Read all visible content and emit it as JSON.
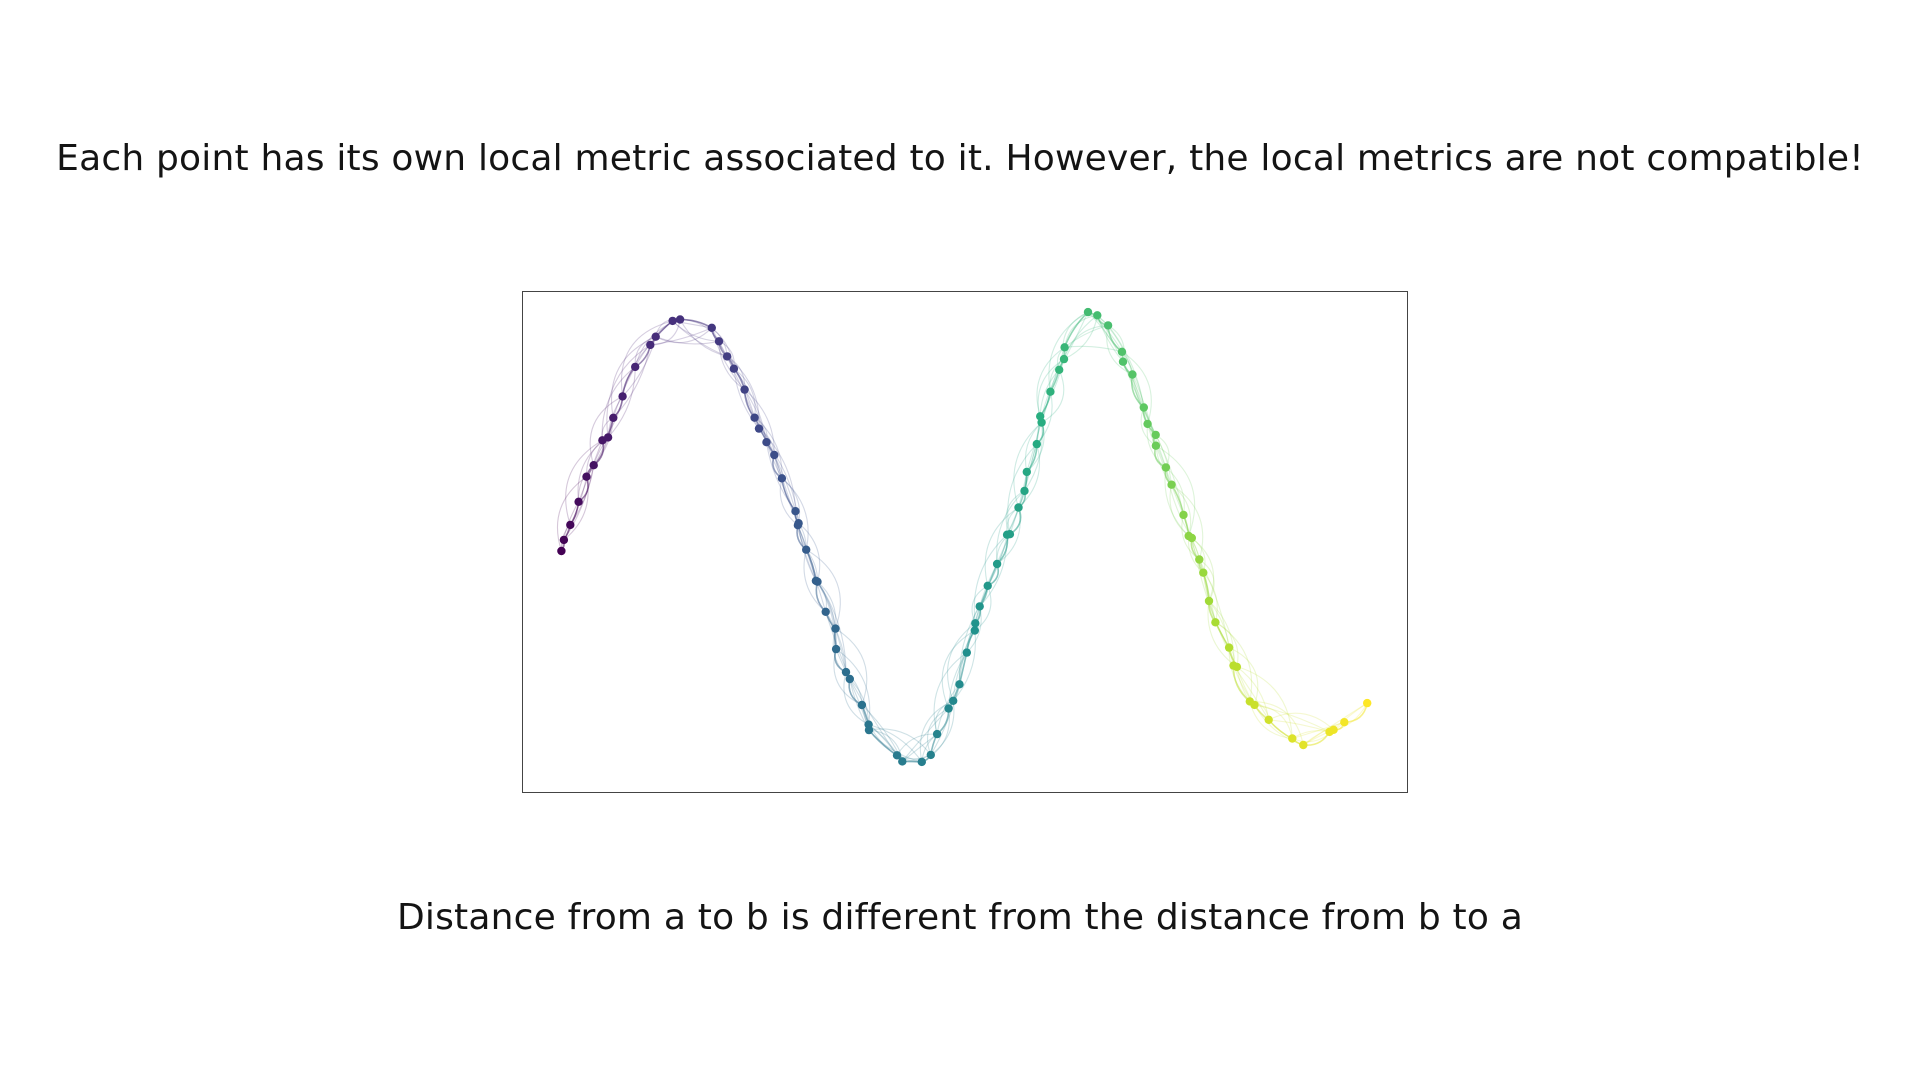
{
  "slide": {
    "top_caption": "Each point has its own local metric associated to it. However, the local metrics are not compatible!",
    "bottom_caption": "Distance from a to b is different from the distance from b to a"
  },
  "plot": {
    "colormap": "viridis",
    "colormap_stops": [
      "#440154",
      "#472c7a",
      "#3b518b",
      "#2c718e",
      "#21908d",
      "#27ad81",
      "#5cc863",
      "#aadc32",
      "#fde725"
    ],
    "axes_visible": false,
    "frame_color": "#444444",
    "description_points": [
      [
        0.0,
        3.0
      ],
      [
        0.08,
        3.35
      ],
      [
        0.2,
        3.6
      ],
      [
        0.55,
        4.55
      ],
      [
        0.9,
        5.3
      ],
      [
        1.2,
        5.7
      ],
      [
        1.45,
        5.75
      ],
      [
        1.7,
        5.6
      ],
      [
        1.95,
        5.1
      ],
      [
        2.1,
        4.7
      ],
      [
        2.35,
        4.1
      ],
      [
        2.55,
        3.55
      ],
      [
        2.75,
        2.95
      ],
      [
        2.95,
        2.35
      ],
      [
        3.1,
        1.75
      ],
      [
        3.3,
        1.2
      ],
      [
        3.5,
        0.8
      ],
      [
        3.75,
        0.55
      ],
      [
        4.05,
        0.55
      ],
      [
        4.3,
        1.15
      ],
      [
        4.5,
        1.9
      ],
      [
        4.8,
        2.8
      ],
      [
        5.1,
        3.8
      ],
      [
        5.35,
        4.75
      ],
      [
        5.6,
        5.5
      ],
      [
        5.8,
        5.8
      ],
      [
        6.0,
        5.75
      ],
      [
        6.25,
        5.2
      ],
      [
        6.5,
        4.5
      ],
      [
        6.8,
        3.7
      ],
      [
        7.05,
        2.9
      ],
      [
        7.3,
        2.0
      ],
      [
        7.6,
        1.3
      ],
      [
        7.95,
        0.85
      ],
      [
        8.3,
        0.75
      ],
      [
        8.6,
        1.0
      ],
      [
        8.9,
        1.25
      ]
    ]
  }
}
